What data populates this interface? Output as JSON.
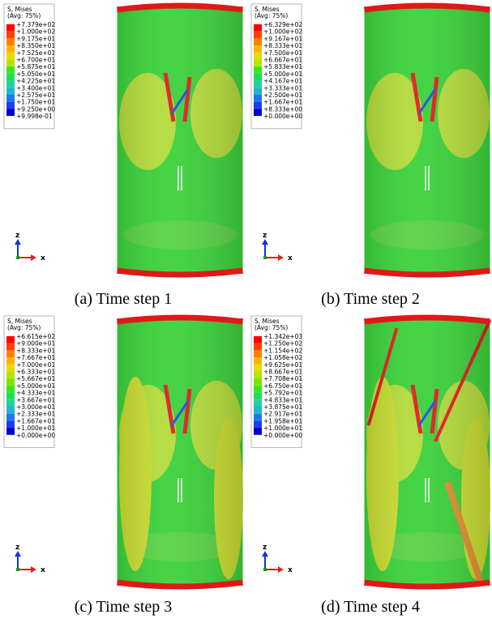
{
  "panels": [
    {
      "legend": {
        "title": "S, Mises",
        "subtitle": "(Avg: 75%)",
        "values": [
          "+7.379e+02",
          "+1.000e+02",
          "+9.175e+01",
          "+8.350e+01",
          "+7.525e+01",
          "+6.700e+01",
          "+5.875e+01",
          "+5.050e+01",
          "+4.225e+01",
          "+3.400e+01",
          "+2.575e+01",
          "+1.750e+01",
          "+9.250e+00",
          "+9.998e-01"
        ]
      },
      "axis_z": "z",
      "axis_x": "x",
      "caption": "(a) Time step 1"
    },
    {
      "legend": {
        "title": "S, Mises",
        "subtitle": "(Avg: 75%)",
        "values": [
          "+6.329e+02",
          "+1.000e+02",
          "+9.167e+01",
          "+8.333e+01",
          "+7.500e+01",
          "+6.667e+01",
          "+5.833e+01",
          "+5.000e+01",
          "+4.167e+01",
          "+3.333e+01",
          "+2.500e+01",
          "+1.667e+01",
          "+8.333e+00",
          "+0.000e+00"
        ]
      },
      "axis_z": "z",
      "axis_x": "x",
      "caption": "(b) Time step 2"
    },
    {
      "legend": {
        "title": "S, Mises",
        "subtitle": "(Avg: 75%)",
        "values": [
          "+6.615e+02",
          "+9.000e+01",
          "+8.333e+01",
          "+7.667e+01",
          "+7.000e+01",
          "+6.333e+01",
          "+5.667e+01",
          "+5.000e+01",
          "+4.333e+01",
          "+3.667e+01",
          "+3.000e+01",
          "+2.333e+01",
          "+1.667e+01",
          "+1.000e+01",
          "+0.000e+00"
        ]
      },
      "axis_z": "z",
      "axis_x": "x",
      "caption": "(c) Time step 3"
    },
    {
      "legend": {
        "title": "S, Mises",
        "subtitle": "(Avg: 75%)",
        "values": [
          "+1.342e+03",
          "+1.250e+02",
          "+1.154e+02",
          "+1.058e+02",
          "+9.625e+01",
          "+8.667e+01",
          "+7.708e+01",
          "+6.750e+01",
          "+5.792e+01",
          "+4.833e+01",
          "+3.875e+01",
          "+2.917e+01",
          "+1.958e+01",
          "+1.000e+01",
          "+0.000e+00"
        ]
      },
      "axis_z": "z",
      "axis_x": "x",
      "caption": "(d) Time step 4"
    }
  ]
}
